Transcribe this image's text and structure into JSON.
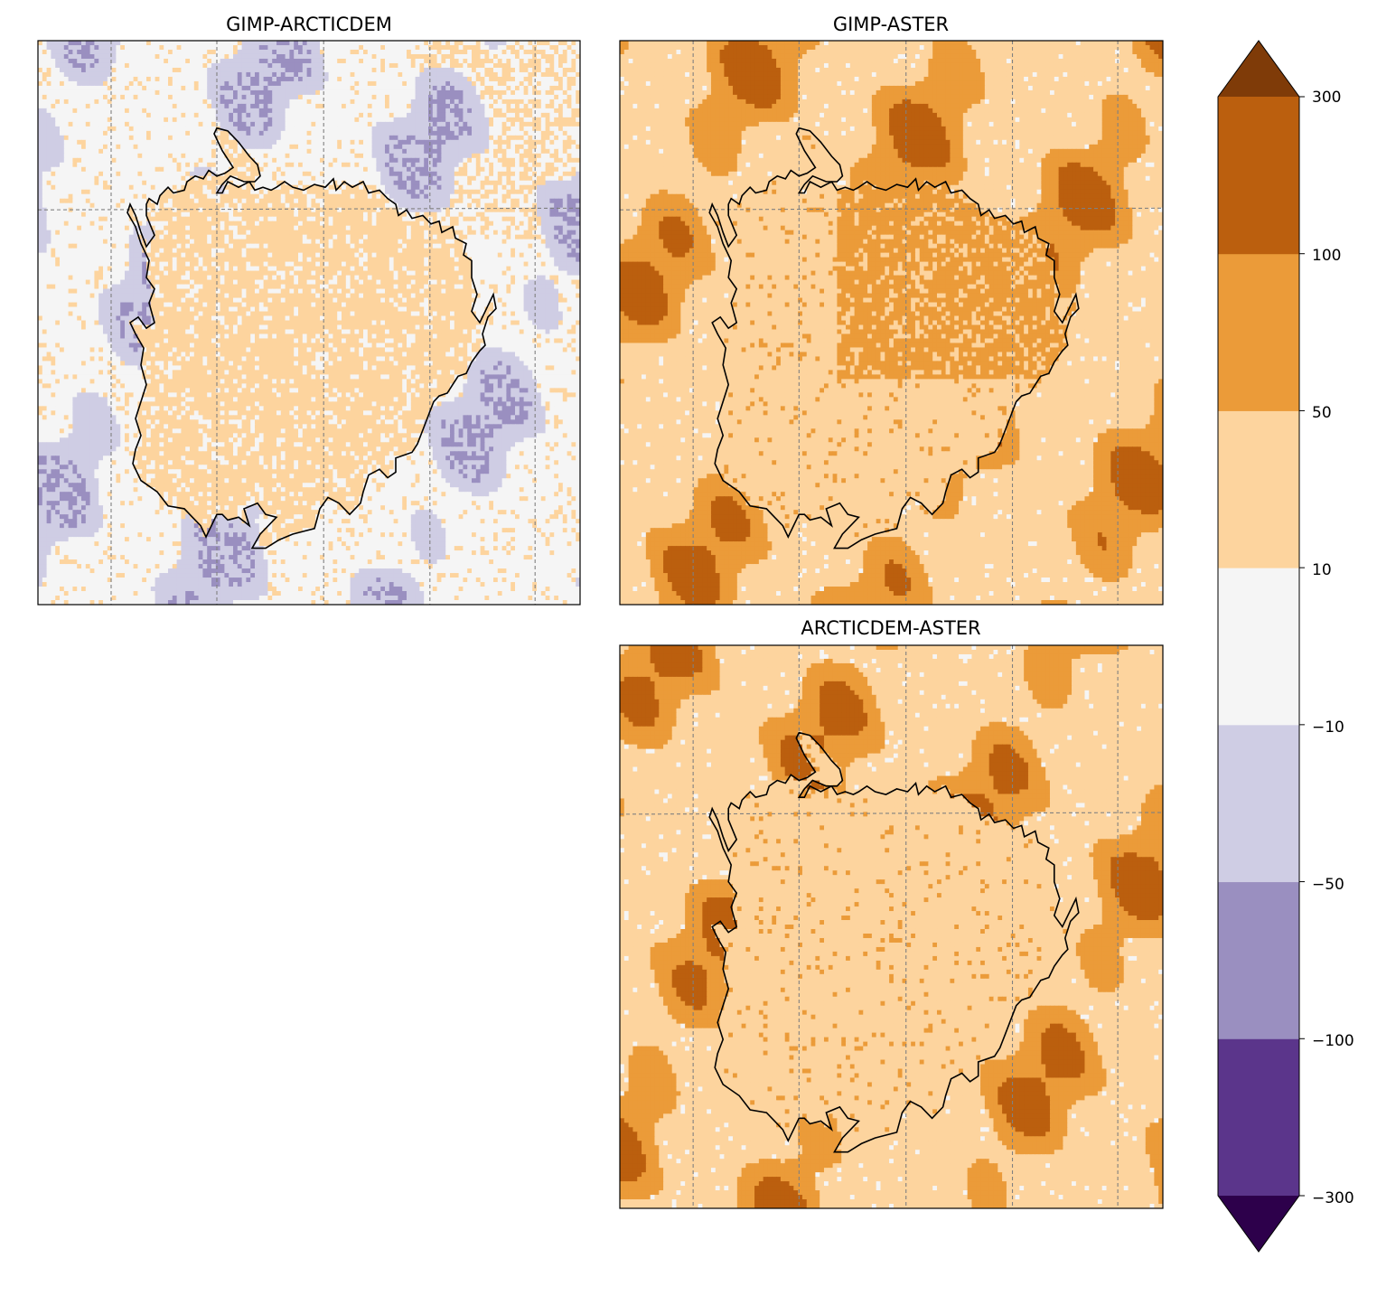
{
  "chart_data": {
    "type": "heatmap",
    "panels": [
      {
        "title": "GIMP-ARCTICDEM",
        "dominant_bin": 4,
        "secondary_bin": 3,
        "dispersion": "negative"
      },
      {
        "title": "GIMP-ASTER",
        "dominant_bin": 5,
        "secondary_bin": 6,
        "dispersion": "positive"
      },
      {
        "title": "ARCTICDEM-ASTER",
        "dominant_bin": 5,
        "secondary_bin": 6,
        "dispersion": "positive"
      }
    ],
    "colorbar": {
      "boundaries": [
        -300,
        -100,
        -50,
        -10,
        10,
        50,
        100,
        300
      ],
      "tick_labels": [
        "−300",
        "−100",
        "−50",
        "−10",
        "10",
        "50",
        "100",
        "300"
      ],
      "colors": [
        "#5b358b",
        "#9a8fc0",
        "#cfcde4",
        "#f5f5f5",
        "#fdd49e",
        "#eb9b39",
        "#bb5f0e"
      ],
      "under_color": "#2d004b",
      "over_color": "#7f3b08",
      "extend": "both"
    },
    "grid": true,
    "coastline": true,
    "lat_line_fraction": 0.3
  }
}
